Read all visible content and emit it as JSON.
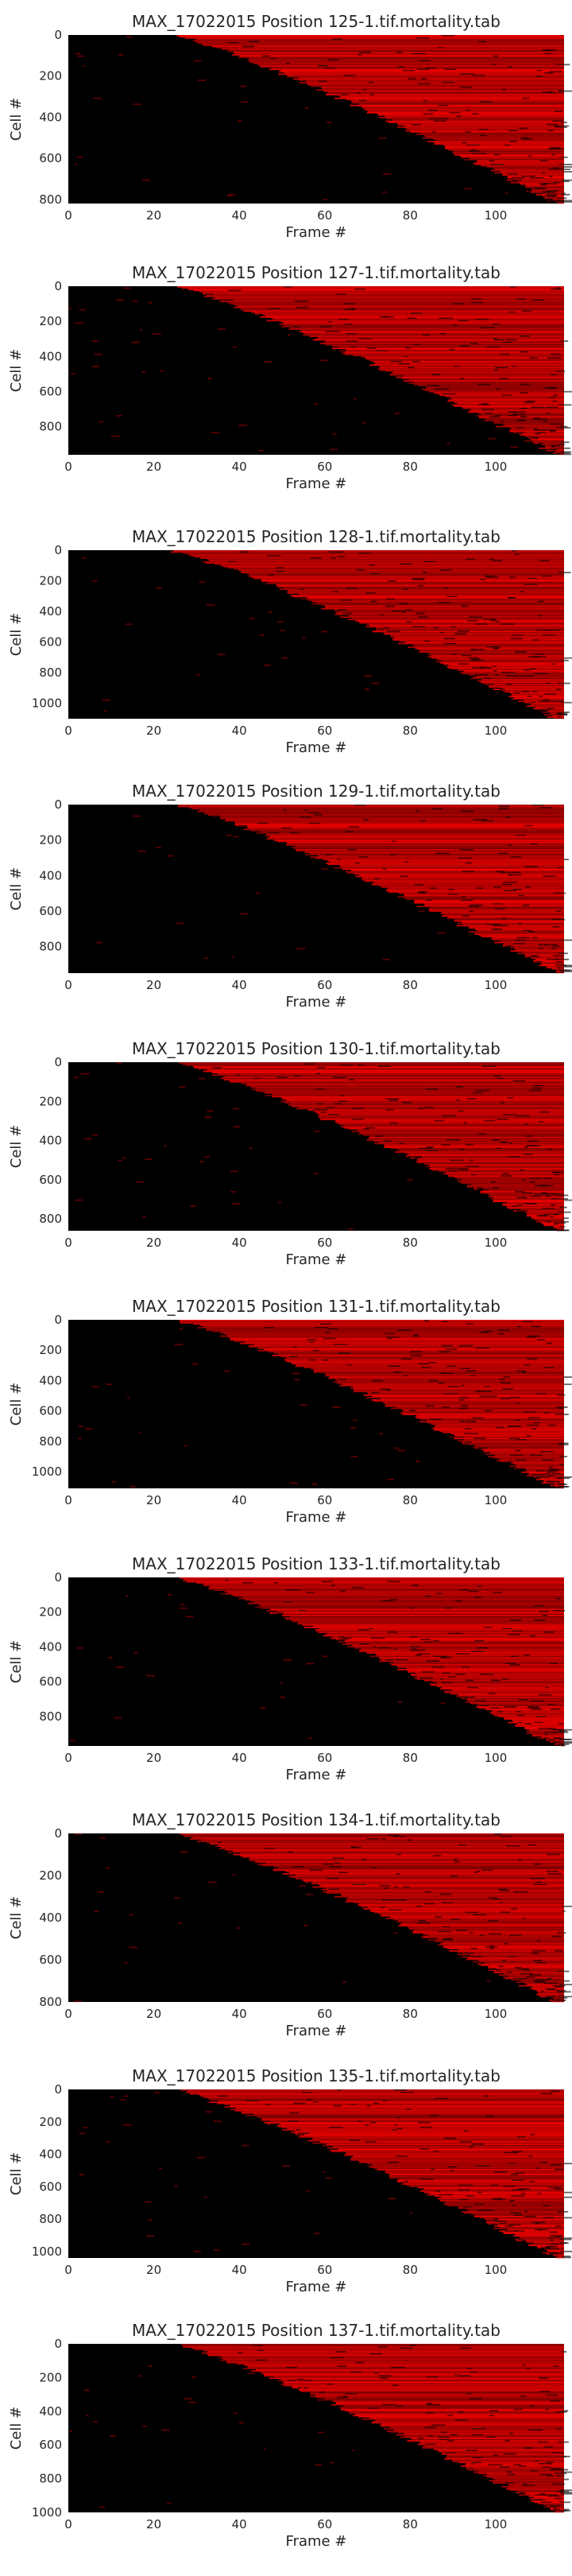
{
  "chart_data": [
    {
      "type": "heatmap",
      "title": "MAX_17022015 Position 125-1.tif.mortality.tab",
      "xlabel": "Frame #",
      "ylabel": "Cell #",
      "xlim": [
        0,
        116
      ],
      "ylim": [
        0,
        820
      ],
      "xticks": [
        0,
        20,
        40,
        60,
        80,
        100
      ],
      "yticks": [
        0,
        200,
        400,
        600,
        800
      ],
      "colormap": "black-to-red",
      "onset_frame_range": [
        25,
        114
      ]
    },
    {
      "type": "heatmap",
      "title": "MAX_17022015 Position 127-1.tif.mortality.tab",
      "xlabel": "Frame #",
      "ylabel": "Cell #",
      "xlim": [
        0,
        116
      ],
      "ylim": [
        0,
        960
      ],
      "xticks": [
        0,
        20,
        40,
        60,
        80,
        100
      ],
      "yticks": [
        0,
        200,
        400,
        600,
        800
      ],
      "colormap": "black-to-red",
      "onset_frame_range": [
        25,
        114
      ]
    },
    {
      "type": "heatmap",
      "title": "MAX_17022015 Position 128-1.tif.mortality.tab",
      "xlabel": "Frame #",
      "ylabel": "Cell #",
      "xlim": [
        0,
        116
      ],
      "ylim": [
        0,
        1100
      ],
      "xticks": [
        0,
        20,
        40,
        60,
        80,
        100
      ],
      "yticks": [
        0,
        200,
        400,
        600,
        800,
        1000
      ],
      "colormap": "black-to-red",
      "onset_frame_range": [
        24,
        114
      ]
    },
    {
      "type": "heatmap",
      "title": "MAX_17022015 Position 129-1.tif.mortality.tab",
      "xlabel": "Frame #",
      "ylabel": "Cell #",
      "xlim": [
        0,
        116
      ],
      "ylim": [
        0,
        950
      ],
      "xticks": [
        0,
        20,
        40,
        60,
        80,
        100
      ],
      "yticks": [
        0,
        200,
        400,
        600,
        800
      ],
      "colormap": "black-to-red",
      "onset_frame_range": [
        25,
        114
      ]
    },
    {
      "type": "heatmap",
      "title": "MAX_17022015 Position 130-1.tif.mortality.tab",
      "xlabel": "Frame #",
      "ylabel": "Cell #",
      "xlim": [
        0,
        116
      ],
      "ylim": [
        0,
        860
      ],
      "xticks": [
        0,
        20,
        40,
        60,
        80,
        100
      ],
      "yticks": [
        0,
        200,
        400,
        600,
        800
      ],
      "colormap": "black-to-red",
      "onset_frame_range": [
        25,
        114
      ]
    },
    {
      "type": "heatmap",
      "title": "MAX_17022015 Position 131-1.tif.mortality.tab",
      "xlabel": "Frame #",
      "ylabel": "Cell #",
      "xlim": [
        0,
        116
      ],
      "ylim": [
        0,
        1110
      ],
      "xticks": [
        0,
        20,
        40,
        60,
        80,
        100
      ],
      "yticks": [
        0,
        200,
        400,
        600,
        800,
        1000
      ],
      "colormap": "black-to-red",
      "onset_frame_range": [
        25,
        114
      ]
    },
    {
      "type": "heatmap",
      "title": "MAX_17022015 Position 133-1.tif.mortality.tab",
      "xlabel": "Frame #",
      "ylabel": "Cell #",
      "xlim": [
        0,
        116
      ],
      "ylim": [
        0,
        970
      ],
      "xticks": [
        0,
        20,
        40,
        60,
        80,
        100
      ],
      "yticks": [
        0,
        200,
        400,
        600,
        800
      ],
      "colormap": "black-to-red",
      "onset_frame_range": [
        25,
        114
      ]
    },
    {
      "type": "heatmap",
      "title": "MAX_17022015 Position 134-1.tif.mortality.tab",
      "xlabel": "Frame #",
      "ylabel": "Cell #",
      "xlim": [
        0,
        116
      ],
      "ylim": [
        0,
        800
      ],
      "xticks": [
        0,
        20,
        40,
        60,
        80,
        100
      ],
      "yticks": [
        0,
        200,
        400,
        600,
        800
      ],
      "colormap": "black-to-red",
      "onset_frame_range": [
        25,
        114
      ]
    },
    {
      "type": "heatmap",
      "title": "MAX_17022015 Position 135-1.tif.mortality.tab",
      "xlabel": "Frame #",
      "ylabel": "Cell #",
      "xlim": [
        0,
        116
      ],
      "ylim": [
        0,
        1040
      ],
      "xticks": [
        0,
        20,
        40,
        60,
        80,
        100
      ],
      "yticks": [
        0,
        200,
        400,
        600,
        800,
        1000
      ],
      "colormap": "black-to-red",
      "onset_frame_range": [
        25,
        114
      ]
    },
    {
      "type": "heatmap",
      "title": "MAX_17022015 Position 137-1.tif.mortality.tab",
      "xlabel": "Frame #",
      "ylabel": "Cell #",
      "xlim": [
        0,
        116
      ],
      "ylim": [
        0,
        1000
      ],
      "xticks": [
        0,
        20,
        40,
        60,
        80,
        100
      ],
      "yticks": [
        0,
        200,
        400,
        600,
        800,
        1000
      ],
      "colormap": "black-to-red",
      "onset_frame_range": [
        25,
        114
      ]
    }
  ],
  "colors": {
    "background": "#000000",
    "signal": "#ff0000",
    "text": "#262626"
  }
}
